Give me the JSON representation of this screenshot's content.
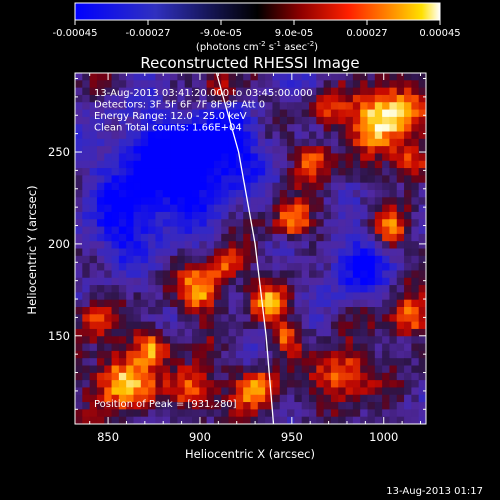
{
  "colorbar": {
    "ticks": [
      "-0.00045",
      "-0.00027",
      "-9.0e-05",
      "9.0e-05",
      "0.00027",
      "0.00045"
    ],
    "unit_label": "(photons cm",
    "unit_sup1": "-2",
    "unit_mid1": " s",
    "unit_sup2": "-1",
    "unit_mid2": " asec",
    "unit_sup3": "-2",
    "unit_end": ")",
    "min": -0.00045,
    "max": 0.00045
  },
  "chart_data": {
    "type": "heatmap",
    "title": "Reconstructed RHESSI Image",
    "xlabel": "Heliocentric X (arcsec)",
    "ylabel": "Heliocentric Y (arcsec)",
    "xlim": [
      832,
      1023
    ],
    "ylim": [
      102,
      293
    ],
    "xticks": [
      850,
      900,
      950,
      1000
    ],
    "yticks": [
      150,
      200,
      250
    ],
    "annotations": [
      "13-Aug-2013 03:41:20.000 to 03:45:00.000",
      "Detectors: 3F 5F 6F 7F 8F 9F Att 0",
      "Energy Range: 12.0 - 25.0 keV",
      "Clean     Total counts: 1.66E+04"
    ],
    "peak_label": "Position of Peak = [931,280]",
    "peak": [
      931,
      280
    ],
    "limb_curve": [
      [
        909,
        293
      ],
      [
        921,
        250
      ],
      [
        930,
        200
      ],
      [
        936,
        150
      ],
      [
        940,
        102
      ]
    ],
    "colors": [
      "#0000ff",
      "#2020a0",
      "#000000",
      "#800000",
      "#ff0000",
      "#ff8000",
      "#ffff00",
      "#ffffff"
    ]
  },
  "footer": {
    "timestamp": "13-Aug-2013 01:17"
  }
}
